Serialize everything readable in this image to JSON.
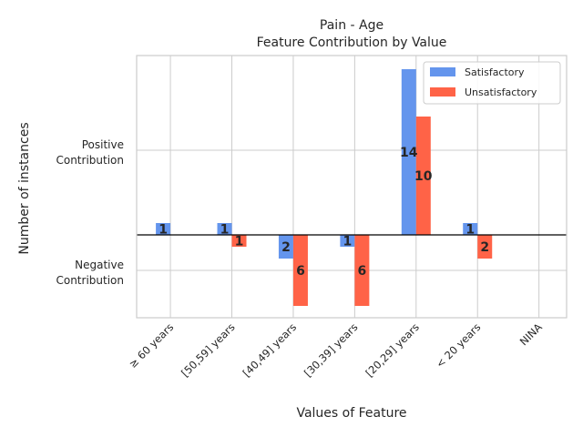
{
  "chart_data": {
    "type": "bar",
    "title": "Pain - Age",
    "subtitle": "Feature Contribution by Value",
    "xlabel": "Values of Feature",
    "ylabel": "Number of instances",
    "ytick_labels": [
      "Positive\nContribution",
      "Negative\nContribution"
    ],
    "categories": [
      "≥ 60 years",
      "[50,59] years",
      "[40,49] years",
      "[30,39] years",
      "[20,29] years",
      "< 20 years",
      "NINA"
    ],
    "series": [
      {
        "name": "Satisfactory",
        "color": "#6495ED",
        "values": [
          1,
          1,
          -2,
          -1,
          14,
          1,
          null
        ],
        "labels": [
          "1",
          "1",
          "2",
          "1",
          "14",
          "1",
          ""
        ]
      },
      {
        "name": "Unsatisfactory",
        "color": "#FF6347",
        "values": [
          null,
          -1,
          -6,
          -6,
          10,
          -2,
          null
        ],
        "labels": [
          "",
          "1",
          "6",
          "6",
          "10",
          "2",
          ""
        ]
      }
    ],
    "ylim": [
      -7,
      15
    ],
    "grid": true,
    "legend_position": "top-right"
  }
}
